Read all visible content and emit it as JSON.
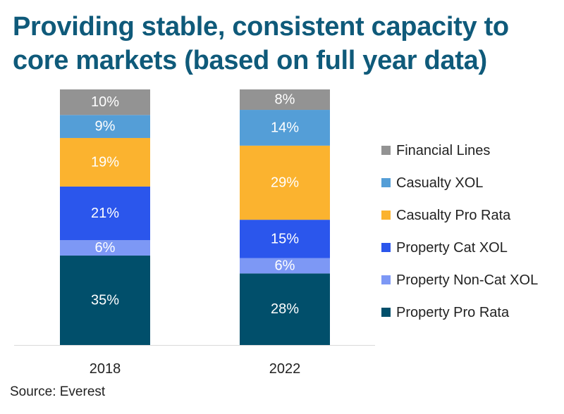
{
  "title_line1": "Providing stable, consistent capacity to",
  "title_line2": "core markets  (based on full year data)",
  "source": "Source: Everest",
  "chart_data": {
    "type": "bar",
    "stacked": true,
    "categories": [
      "2018",
      "2022"
    ],
    "ylim": [
      0,
      100
    ],
    "value_suffix": "%",
    "legend_position": "right",
    "series": [
      {
        "name": "Property Pro Rata",
        "color": "#014f6b",
        "values": [
          35,
          28
        ]
      },
      {
        "name": "Property Non-Cat XOL",
        "color": "#7d98f5",
        "values": [
          6,
          6
        ]
      },
      {
        "name": "Property Cat XOL",
        "color": "#2b56ec",
        "values": [
          21,
          15
        ]
      },
      {
        "name": "Casualty Pro Rata",
        "color": "#fbb32f",
        "values": [
          19,
          29
        ]
      },
      {
        "name": "Casualty XOL",
        "color": "#549ed7",
        "values": [
          9,
          14
        ]
      },
      {
        "name": "Financial Lines",
        "color": "#939393",
        "values": [
          10,
          8
        ]
      }
    ]
  }
}
